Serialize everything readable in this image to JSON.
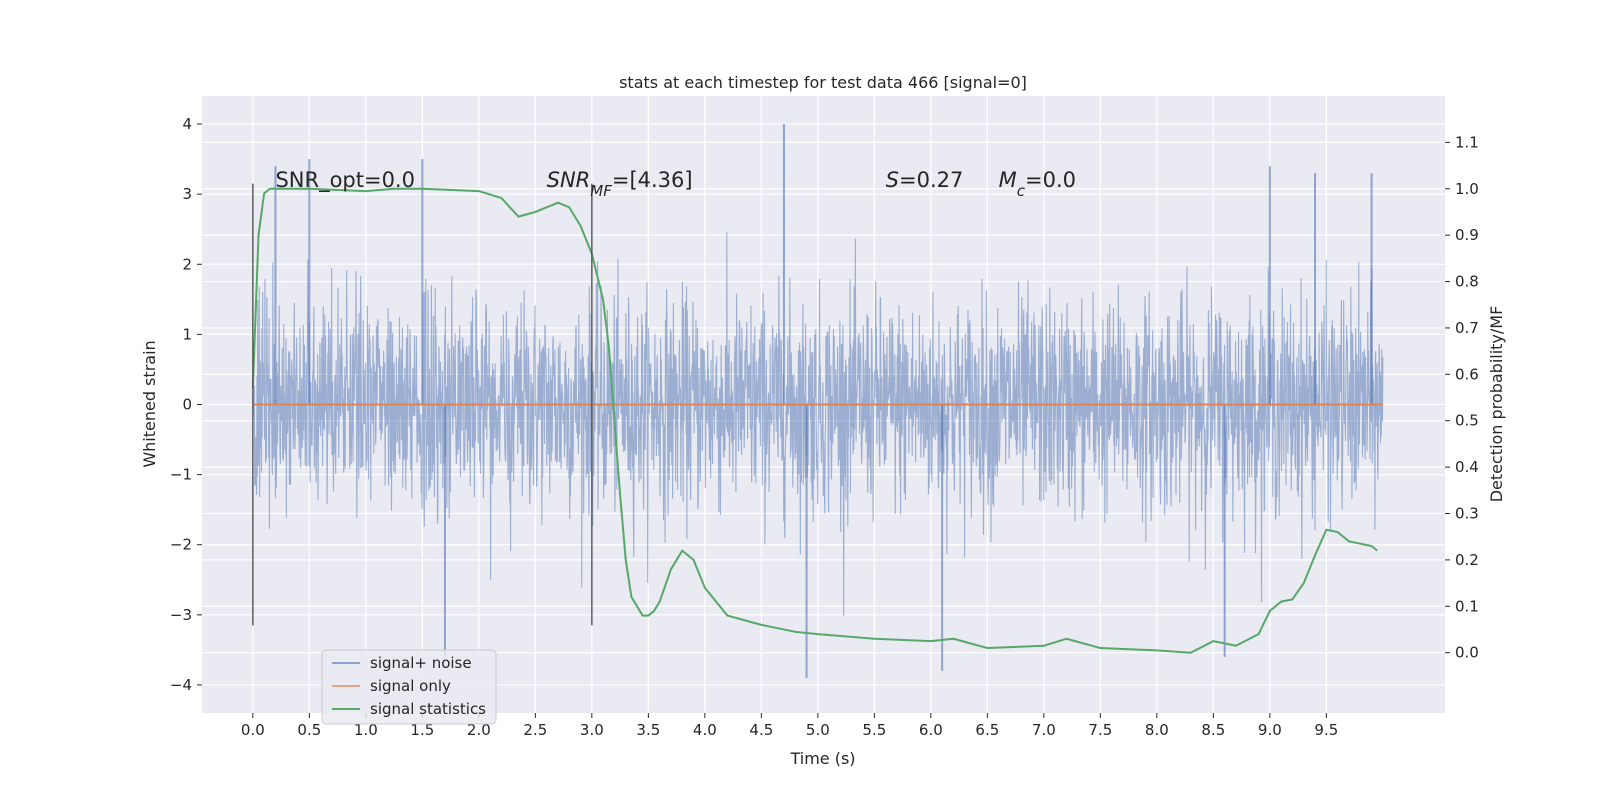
{
  "chart_data": {
    "type": "line",
    "title": "stats at each timestep for test data 466 [signal=0]",
    "xlabel": "Time (s)",
    "ylabel": "Whitened strain",
    "y2label": "Detection probability/MF",
    "xlim": [
      -0.45,
      10.55
    ],
    "ylim": [
      -4.4,
      4.4
    ],
    "y2lim": [
      -0.13,
      1.2
    ],
    "xticks": [
      0.0,
      0.5,
      1.0,
      1.5,
      2.0,
      2.5,
      3.0,
      3.5,
      4.0,
      4.5,
      5.0,
      5.5,
      6.0,
      6.5,
      7.0,
      7.5,
      8.0,
      8.5,
      9.0,
      9.5
    ],
    "xtick_labels": [
      "0.0",
      "0.5",
      "1.0",
      "1.5",
      "2.0",
      "2.5",
      "3.0",
      "3.5",
      "4.0",
      "4.5",
      "5.0",
      "5.5",
      "6.0",
      "6.5",
      "7.0",
      "7.5",
      "8.0",
      "8.5",
      "9.0",
      "9.5"
    ],
    "yticks": [
      -4,
      -3,
      -2,
      -1,
      0,
      1,
      2,
      3,
      4
    ],
    "ytick_labels": [
      "−4",
      "−3",
      "−2",
      "−1",
      "0",
      "1",
      "2",
      "3",
      "4"
    ],
    "y2ticks": [
      0.0,
      0.1,
      0.2,
      0.3,
      0.4,
      0.5,
      0.6,
      0.7,
      0.8,
      0.9,
      1.0,
      1.1
    ],
    "y2tick_labels": [
      "0.0",
      "0.1",
      "0.2",
      "0.3",
      "0.4",
      "0.5",
      "0.6",
      "0.7",
      "0.8",
      "0.9",
      "1.0",
      "1.1"
    ],
    "grid": true,
    "legend_position": "lower-left",
    "annotations": [
      {
        "x": 0.2,
        "y": 3.1,
        "parts": [
          {
            "t": "SNR_opt=0.0",
            "i": false
          }
        ]
      },
      {
        "x": 2.6,
        "y": 3.1,
        "parts": [
          {
            "t": "SNR",
            "i": true
          },
          {
            "t": "MF",
            "i": true,
            "sub": true
          },
          {
            "t": "=[4.36]",
            "i": false
          }
        ]
      },
      {
        "x": 5.6,
        "y": 3.1,
        "parts": [
          {
            "t": "S",
            "i": true
          },
          {
            "t": "=0.27",
            "i": false
          }
        ]
      },
      {
        "x": 6.6,
        "y": 3.1,
        "parts": [
          {
            "t": "M",
            "i": true
          },
          {
            "t": "c",
            "i": true,
            "sub": true
          },
          {
            "t": "=0.0",
            "i": false
          }
        ]
      }
    ],
    "vlines": [
      {
        "x": 0.0,
        "ymin": -3.15,
        "ymax": 3.15
      },
      {
        "x": 3.0,
        "ymin": -3.15,
        "ymax": 3.15
      }
    ],
    "noise_series": {
      "name": "signal+ noise",
      "color": "#4c72b0",
      "t_start": 0.0,
      "t_end": 10.0,
      "approx_std": 0.75,
      "peak_times": [
        0.2,
        0.5,
        1.5,
        1.7,
        4.7,
        4.9,
        6.1,
        8.6,
        9.0,
        9.4,
        9.9
      ],
      "peak_values": [
        3.4,
        3.5,
        3.5,
        -3.6,
        4.0,
        -3.9,
        -3.8,
        -3.6,
        3.4,
        3.3,
        3.3
      ]
    },
    "series": [
      {
        "name": "signal only",
        "color": "#dd8452",
        "axis": "left",
        "x": [
          0.0,
          10.0
        ],
        "y": [
          0.0,
          0.0
        ]
      },
      {
        "name": "signal statistics",
        "color": "#55a868",
        "axis": "right",
        "x": [
          0.0,
          0.05,
          0.1,
          0.15,
          0.25,
          0.5,
          1.0,
          1.25,
          1.5,
          2.0,
          2.2,
          2.35,
          2.5,
          2.6,
          2.7,
          2.8,
          2.9,
          3.0,
          3.1,
          3.15,
          3.2,
          3.25,
          3.3,
          3.35,
          3.4,
          3.45,
          3.5,
          3.55,
          3.6,
          3.7,
          3.8,
          3.9,
          4.0,
          4.2,
          4.5,
          4.8,
          5.0,
          5.5,
          6.0,
          6.2,
          6.5,
          7.0,
          7.2,
          7.5,
          8.0,
          8.3,
          8.5,
          8.7,
          8.9,
          9.0,
          9.1,
          9.2,
          9.3,
          9.4,
          9.5,
          9.6,
          9.7,
          9.8,
          9.9,
          9.95
        ],
        "y": [
          0.57,
          0.9,
          0.99,
          1.0,
          1.0,
          1.0,
          0.995,
          1.0,
          1.0,
          0.995,
          0.98,
          0.94,
          0.95,
          0.96,
          0.97,
          0.96,
          0.92,
          0.86,
          0.76,
          0.66,
          0.5,
          0.34,
          0.2,
          0.12,
          0.1,
          0.08,
          0.08,
          0.09,
          0.11,
          0.18,
          0.22,
          0.2,
          0.14,
          0.08,
          0.06,
          0.045,
          0.04,
          0.03,
          0.025,
          0.03,
          0.01,
          0.015,
          0.03,
          0.01,
          0.005,
          0.0,
          0.025,
          0.015,
          0.04,
          0.09,
          0.11,
          0.115,
          0.15,
          0.21,
          0.265,
          0.26,
          0.24,
          0.235,
          0.23,
          0.22
        ]
      }
    ]
  }
}
